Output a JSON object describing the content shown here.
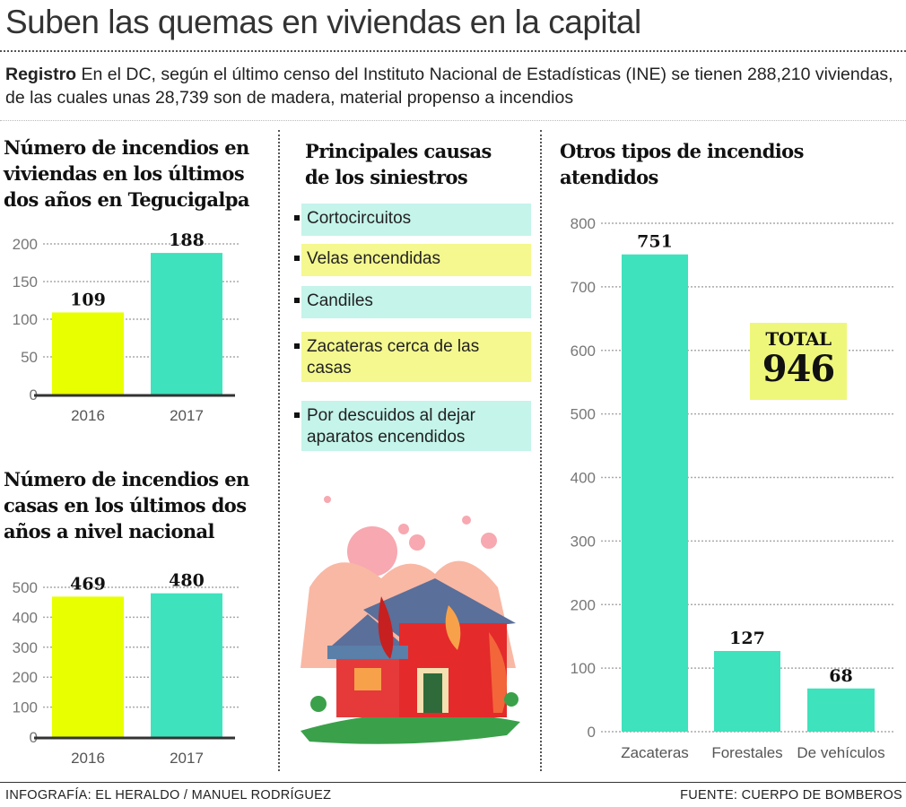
{
  "title": "Suben las quemas en viviendas en la capital",
  "intro": {
    "lead": "Registro",
    "text": " En el DC, según el último censo del Instituto Nacional de Estadísticas (INE) se tienen 288,210 viviendas, de las cuales unas 28,739 son de madera, material propenso a incendios"
  },
  "causes": {
    "title": "Principales causas de los siniestros",
    "items": [
      {
        "label": "Cortocircuitos",
        "color": "#c4f4ea"
      },
      {
        "label": "Velas encendidas",
        "color": "#f4f88e"
      },
      {
        "label": "Candiles",
        "color": "#c4f4ea"
      },
      {
        "label": "Zacateras cerca de las casas",
        "color": "#f4f88e"
      },
      {
        "label": "Por descuidos al dejar aparatos encendidos",
        "color": "#c4f4ea"
      }
    ]
  },
  "total": {
    "label": "TOTAL",
    "value": "946"
  },
  "footer": {
    "credit": "INFOGRAFÍA: EL HERALDO / MANUEL RODRÍGUEZ",
    "source": "FUENTE: CUERPO DE BOMBEROS"
  },
  "chart_data": [
    {
      "type": "bar",
      "title": "Número de incendios en viviendas en los últimos dos años en Tegucigalpa",
      "categories": [
        "2016",
        "2017"
      ],
      "values": [
        109,
        188
      ],
      "colors": [
        "#e8ff00",
        "#3ee2bd"
      ],
      "ylim": [
        0,
        200
      ],
      "yticks": [
        0,
        50,
        100,
        150,
        200
      ],
      "grid": true
    },
    {
      "type": "bar",
      "title": "Número de incendios en casas en los últimos dos años a nivel nacional",
      "categories": [
        "2016",
        "2017"
      ],
      "values": [
        469,
        480
      ],
      "colors": [
        "#e8ff00",
        "#3ee2bd"
      ],
      "ylim": [
        0,
        500
      ],
      "yticks": [
        0,
        100,
        200,
        300,
        400,
        500
      ],
      "grid": true
    },
    {
      "type": "bar",
      "title": "Otros tipos de incendios atendidos",
      "categories": [
        "Zacateras",
        "Forestales",
        "De vehículos"
      ],
      "values": [
        751,
        127,
        68
      ],
      "colors": [
        "#3ee2bd",
        "#3ee2bd",
        "#3ee2bd"
      ],
      "ylim": [
        0,
        800
      ],
      "yticks": [
        0,
        100,
        200,
        300,
        400,
        500,
        600,
        700,
        800
      ],
      "grid": true
    }
  ]
}
